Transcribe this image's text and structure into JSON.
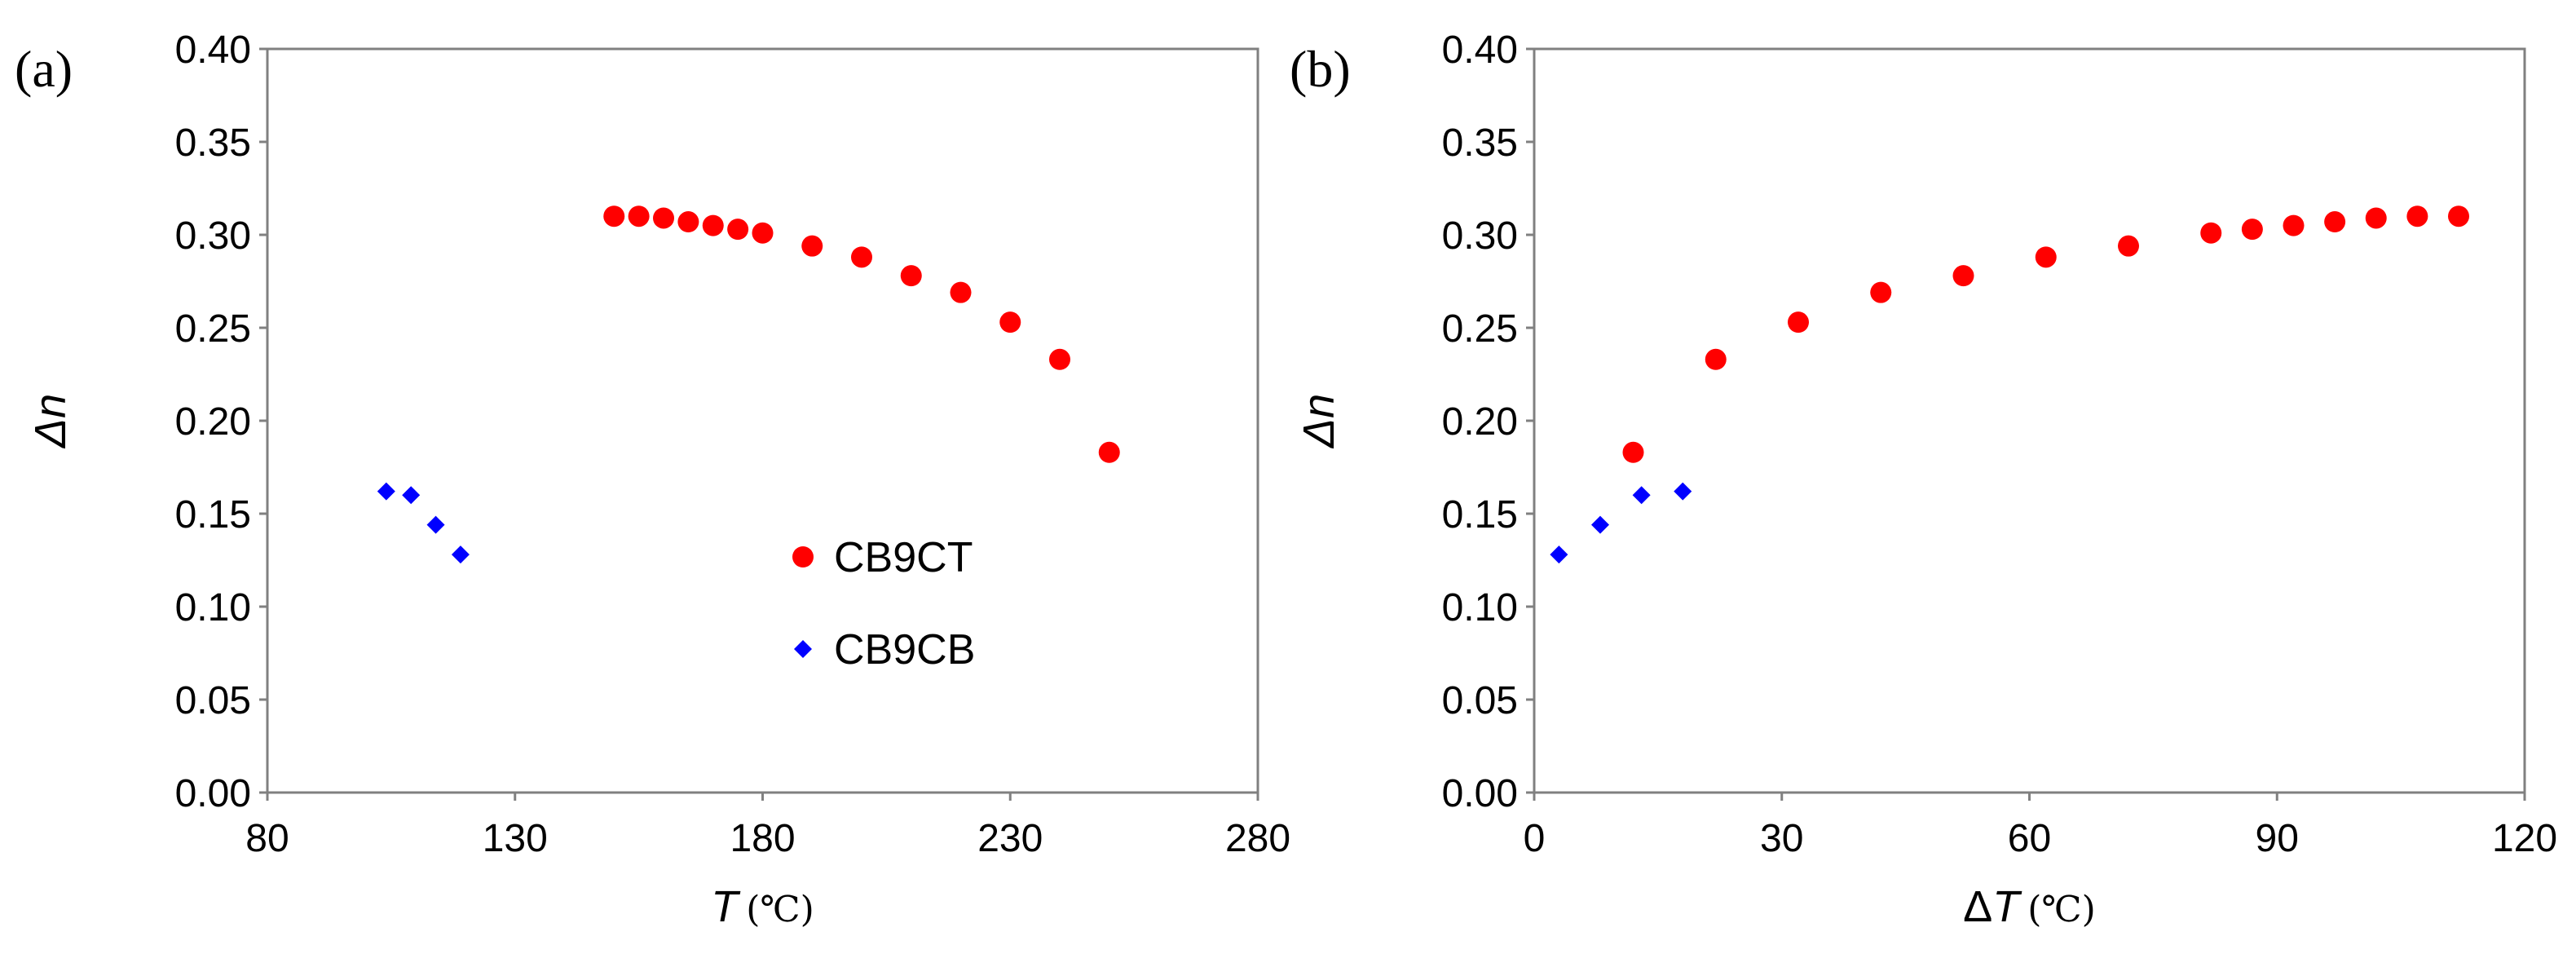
{
  "chart_data": [
    {
      "type": "scatter",
      "panel_label": "(a)",
      "xlabel": "T",
      "xunit": "(℃)",
      "ylabel": "Δn",
      "xlim": [
        80,
        280
      ],
      "ylim": [
        0,
        0.4
      ],
      "xticks": [
        "80",
        "130",
        "180",
        "230",
        "280"
      ],
      "yticks": [
        "0.00",
        "0.05",
        "0.10",
        "0.15",
        "0.20",
        "0.25",
        "0.30",
        "0.35",
        "0.40"
      ],
      "legend_placement": "center-right",
      "series": [
        {
          "name": "CB9CT",
          "marker": "circle",
          "color": "#ff0000",
          "x": [
            150,
            155,
            160,
            165,
            170,
            175,
            180,
            190,
            200,
            210,
            220,
            230,
            240,
            250
          ],
          "y": [
            0.31,
            0.31,
            0.309,
            0.307,
            0.305,
            0.303,
            0.301,
            0.294,
            0.288,
            0.278,
            0.269,
            0.253,
            0.233,
            0.183
          ]
        },
        {
          "name": "CB9CB",
          "marker": "diamond",
          "color": "#0000ff",
          "x": [
            104,
            109,
            114,
            119
          ],
          "y": [
            0.162,
            0.16,
            0.144,
            0.128
          ]
        }
      ]
    },
    {
      "type": "scatter",
      "panel_label": "(b)",
      "xlabel": "ΔT",
      "xunit": "(℃)",
      "ylabel": "Δn",
      "xlim": [
        0,
        120
      ],
      "ylim": [
        0,
        0.4
      ],
      "xticks": [
        "0",
        "30",
        "60",
        "90",
        "120"
      ],
      "yticks": [
        "0.00",
        "0.05",
        "0.10",
        "0.15",
        "0.20",
        "0.25",
        "0.30",
        "0.35",
        "0.40"
      ],
      "series": [
        {
          "name": "CB9CT",
          "marker": "circle",
          "color": "#ff0000",
          "x": [
            112,
            107,
            102,
            97,
            92,
            87,
            82,
            72,
            62,
            52,
            42,
            32,
            22,
            12
          ],
          "y": [
            0.31,
            0.31,
            0.309,
            0.307,
            0.305,
            0.303,
            0.301,
            0.294,
            0.288,
            0.278,
            0.269,
            0.253,
            0.233,
            0.183
          ]
        },
        {
          "name": "CB9CB",
          "marker": "diamond",
          "color": "#0000ff",
          "x": [
            18,
            13,
            8,
            3
          ],
          "y": [
            0.162,
            0.16,
            0.144,
            0.128
          ]
        }
      ]
    }
  ]
}
